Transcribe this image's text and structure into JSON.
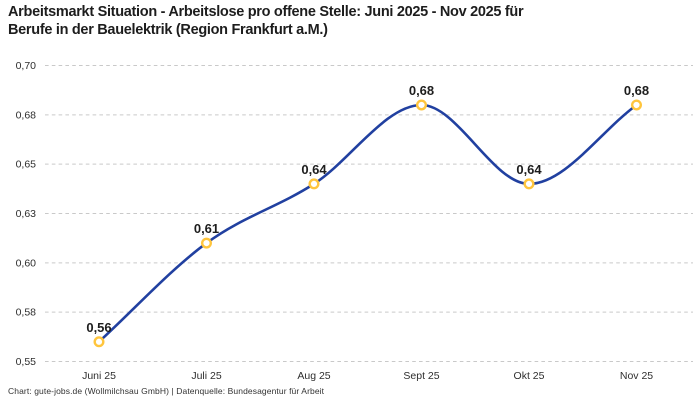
{
  "title": {
    "line1": "Arbeitsmarkt Situation - Arbeitslose pro offene Stelle: Juni 2025 - Nov 2025 für",
    "line2": "Berufe in der Bauelektrik (Region Frankfurt a.M.)"
  },
  "footer": {
    "text": "Chart: gute-jobs.de (Wollmilchsau GmbH) | Datenquelle: Bundesagentur für Arbeit"
  },
  "colors": {
    "line": "#2140A0",
    "marker_stroke": "#FFC53D",
    "marker_fill": "#FFFFFF",
    "gridline": "#C9C9C9",
    "title_text": "#1D1D1D",
    "axis_text": "#2E2E2E",
    "point_label_text": "#1D1D1D",
    "footer_text": "#333333",
    "background": "#FFFFFF"
  },
  "chart_data": {
    "type": "line",
    "title": "Arbeitsmarkt Situation - Arbeitslose pro offene Stelle: Juni 2025 - Nov 2025 für Berufe in der Bauelektrik (Region Frankfurt a.M.)",
    "categories": [
      "Juni 25",
      "Juli 25",
      "Aug 25",
      "Sept 25",
      "Okt 25",
      "Nov 25"
    ],
    "values": [
      0.56,
      0.61,
      0.64,
      0.68,
      0.64,
      0.68
    ],
    "point_labels": [
      "0,56",
      "0,61",
      "0,64",
      "0,68",
      "0,64",
      "0,68"
    ],
    "xlabel": "",
    "ylabel": "",
    "ylim": [
      0.55,
      0.7
    ],
    "yticks": [
      0.55,
      0.575,
      0.6,
      0.625,
      0.65,
      0.675,
      0.7
    ],
    "ytick_labels": [
      "0,55",
      "0,58",
      "0,60",
      "0,63",
      "0,65",
      "0,68",
      "0,70"
    ],
    "grid": "horizontal-dashed",
    "legend": "none",
    "line_style": "smooth-spline",
    "marker_style": "open-circle"
  }
}
